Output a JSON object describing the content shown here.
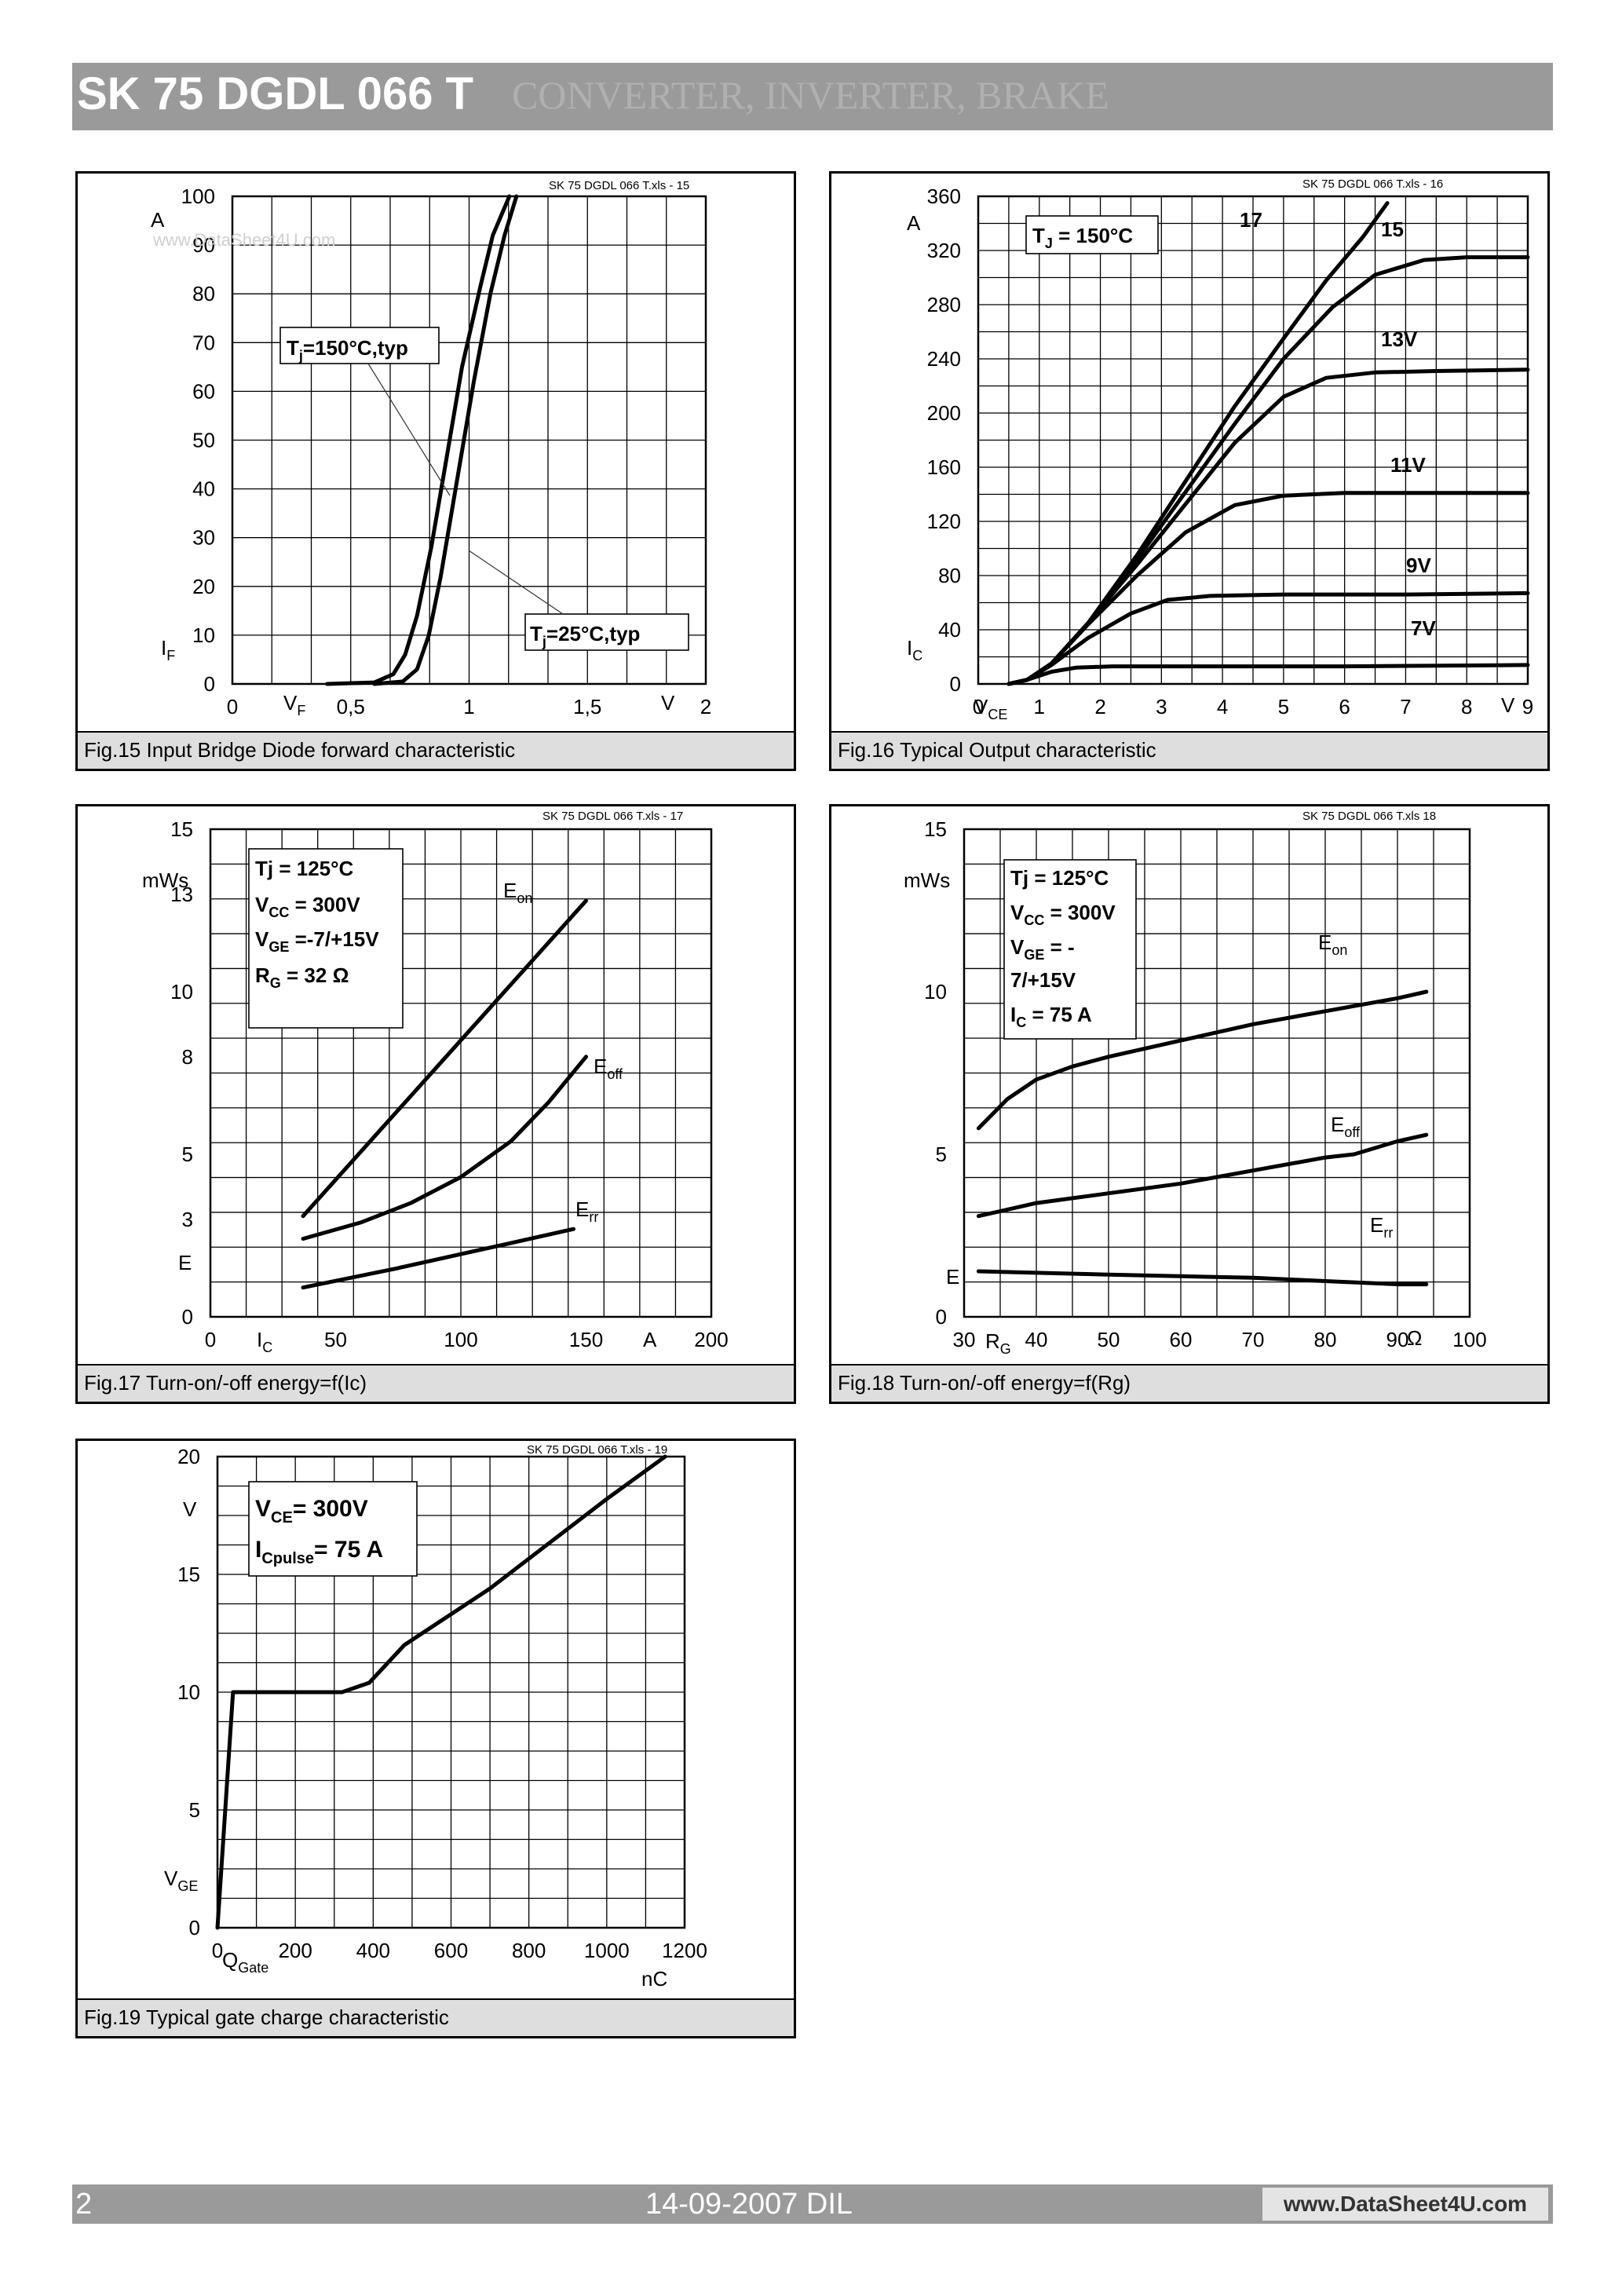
{
  "header": {
    "title": "SK 75 DGDL 066 T",
    "subtitle": "CONVERTER, INVERTER, BRAKE"
  },
  "footer": {
    "page": "2",
    "date": "14-09-2007  DIL",
    "site": "www.DataSheet4U.com"
  },
  "figures": {
    "fig15": {
      "caption": "Fig.15 Input Bridge Diode forward characteristic",
      "file": "SK 75 DGDL 066 T.xls - 15",
      "watermark": "www.DataSheet4U.com",
      "y_unit": "A",
      "y_sym": "I",
      "y_sub": "F",
      "x_sym": "V",
      "x_sub": "F",
      "x_unit": "V",
      "label_hot": "T",
      "label_hot_sub": "j",
      "label_hot_rest": "=150°C,typ",
      "label_cold": "T",
      "label_cold_sub": "j",
      "label_cold_rest": "=25°C,typ"
    },
    "fig16": {
      "caption": "Fig.16 Typical Output characteristic",
      "file": "SK 75 DGDL 066 T.xls - 16",
      "y_unit": "A",
      "y_sym": "I",
      "y_sub": "C",
      "x_sym": "V",
      "x_sub": "CE",
      "x_unit": "V",
      "box_sym": "T",
      "box_sub": "J",
      "box_rest": " = 150°C",
      "curve_labels": [
        "17",
        "15",
        "13V",
        "11V",
        "9V",
        "7V"
      ]
    },
    "fig17": {
      "caption": "Fig.17 Turn-on/-off energy=f(Ic)",
      "file": "SK 75 DGDL 066 T.xls - 17",
      "y_unit": "mWs",
      "y_sym": "E",
      "x_sym": "I",
      "x_sub": "C",
      "x_unit": "A",
      "box": [
        "Tj = 125°C",
        "V",
        "CC",
        " = 300V",
        "V",
        "GE",
        " =-7/+15V",
        "R",
        "G",
        " = 32 Ω"
      ],
      "e_on": [
        "E",
        "on"
      ],
      "e_off": [
        "E",
        "off"
      ],
      "e_rr": [
        "E",
        "rr"
      ]
    },
    "fig18": {
      "caption": "Fig.18 Turn-on/-off energy=f(Rg)",
      "file": "SK 75 DGDL 066 T.xls 18",
      "y_unit": "mWs",
      "y_sym": "E",
      "x_sym": "R",
      "x_sub": "G",
      "x_unit": "Ω",
      "box": [
        "Tj = 125°C",
        "V",
        "CC",
        " = 300V",
        "V",
        "GE",
        " = -",
        "7/+15V",
        "I",
        "C",
        " = 75 A"
      ],
      "e_on": [
        "E",
        "on"
      ],
      "e_off": [
        "E",
        "off"
      ],
      "e_rr": [
        "E",
        "rr"
      ]
    },
    "fig19": {
      "caption": "Fig.19 Typical gate charge characteristic",
      "file": "SK 75 DGDL 066 T.xls - 19",
      "y_unit": "V",
      "y_sym": "V",
      "y_sub": "GE",
      "x_sym": "Q",
      "x_sub": "Gate",
      "x_unit": "nC",
      "box": [
        "V",
        "CE",
        "= 300V",
        "I",
        "Cpulse",
        "= 75 A"
      ]
    }
  },
  "chart_data": [
    {
      "id": "fig15",
      "type": "line",
      "xlim": [
        0,
        2
      ],
      "ylim": [
        0,
        100
      ],
      "xticks": [
        "0",
        "0,5",
        "1",
        "1,5",
        "2"
      ],
      "yticks": [
        "0",
        "10",
        "20",
        "30",
        "40",
        "50",
        "60",
        "70",
        "80",
        "90",
        "100"
      ],
      "series": [
        {
          "points": [
            [
              0.4,
              0
            ],
            [
              0.6,
              0.3
            ],
            [
              0.68,
              2
            ],
            [
              0.73,
              6
            ],
            [
              0.78,
              14
            ],
            [
              0.84,
              28
            ],
            [
              0.9,
              45
            ],
            [
              0.97,
              65
            ],
            [
              1.05,
              82
            ],
            [
              1.1,
              92
            ],
            [
              1.17,
              100
            ]
          ]
        },
        {
          "points": [
            [
              0.6,
              0
            ],
            [
              0.72,
              0.5
            ],
            [
              0.78,
              3
            ],
            [
              0.83,
              10
            ],
            [
              0.88,
              22
            ],
            [
              0.95,
              42
            ],
            [
              1.02,
              62
            ],
            [
              1.09,
              80
            ],
            [
              1.15,
              92
            ],
            [
              1.2,
              100
            ]
          ]
        }
      ]
    },
    {
      "id": "fig16",
      "type": "line",
      "xlim": [
        0,
        9
      ],
      "ylim": [
        0,
        360
      ],
      "xticks": [
        "0",
        "1",
        "2",
        "3",
        "4",
        "5",
        "6",
        "7",
        "8",
        "9"
      ],
      "yticks": [
        "0",
        "40",
        "80",
        "120",
        "160",
        "200",
        "240",
        "280",
        "320",
        "360"
      ],
      "series": [
        {
          "name": "17",
          "points": [
            [
              0.5,
              0
            ],
            [
              0.8,
              3
            ],
            [
              1.2,
              15
            ],
            [
              1.8,
              45
            ],
            [
              2.6,
              95
            ],
            [
              3.4,
              150
            ],
            [
              4.2,
              205
            ],
            [
              5,
              255
            ],
            [
              5.7,
              298
            ],
            [
              6.3,
              330
            ],
            [
              6.7,
              355
            ]
          ]
        },
        {
          "name": "15",
          "points": [
            [
              0.5,
              0
            ],
            [
              0.8,
              3
            ],
            [
              1.2,
              15
            ],
            [
              1.8,
              45
            ],
            [
              2.6,
              92
            ],
            [
              3.4,
              142
            ],
            [
              4.2,
              192
            ],
            [
              5,
              240
            ],
            [
              5.8,
              278
            ],
            [
              6.5,
              302
            ],
            [
              7.3,
              313
            ],
            [
              8,
              315
            ],
            [
              9,
              315
            ]
          ]
        },
        {
          "name": "13V",
          "points": [
            [
              0.5,
              0
            ],
            [
              0.8,
              3
            ],
            [
              1.2,
              15
            ],
            [
              1.8,
              45
            ],
            [
              2.6,
              88
            ],
            [
              3.4,
              133
            ],
            [
              4.2,
              178
            ],
            [
              5,
              212
            ],
            [
              5.7,
              226
            ],
            [
              6.5,
              230
            ],
            [
              7.5,
              231
            ],
            [
              9,
              232
            ]
          ]
        },
        {
          "name": "11V",
          "points": [
            [
              0.5,
              0
            ],
            [
              0.8,
              3
            ],
            [
              1.2,
              15
            ],
            [
              1.8,
              44
            ],
            [
              2.6,
              80
            ],
            [
              3.4,
              112
            ],
            [
              4.2,
              132
            ],
            [
              5,
              139
            ],
            [
              6,
              141
            ],
            [
              7.5,
              141
            ],
            [
              9,
              141
            ]
          ]
        },
        {
          "name": "9V",
          "points": [
            [
              0.5,
              0
            ],
            [
              0.8,
              3
            ],
            [
              1.2,
              14
            ],
            [
              1.8,
              34
            ],
            [
              2.5,
              52
            ],
            [
              3.1,
              62
            ],
            [
              3.8,
              65
            ],
            [
              5,
              66
            ],
            [
              7,
              66
            ],
            [
              9,
              67
            ]
          ]
        },
        {
          "name": "7V",
          "points": [
            [
              0.5,
              0
            ],
            [
              0.8,
              3
            ],
            [
              1.2,
              9
            ],
            [
              1.6,
              12
            ],
            [
              2.2,
              13
            ],
            [
              4,
              13
            ],
            [
              6,
              13
            ],
            [
              9,
              14
            ]
          ]
        }
      ]
    },
    {
      "id": "fig17",
      "type": "line",
      "xlim": [
        0,
        200
      ],
      "ylim": [
        0,
        15
      ],
      "xticks": [
        "0",
        "50",
        "100",
        "150",
        "200"
      ],
      "yticks": [
        "0",
        "3",
        "5",
        "8",
        "10",
        "13",
        "15"
      ],
      "series": [
        {
          "name": "Eon",
          "points": [
            [
              37,
              3.1
            ],
            [
              150,
              12.8
            ]
          ]
        },
        {
          "name": "Eoff",
          "points": [
            [
              37,
              2.4
            ],
            [
              60,
              2.9
            ],
            [
              80,
              3.5
            ],
            [
              100,
              4.3
            ],
            [
              120,
              5.4
            ],
            [
              135,
              6.6
            ],
            [
              150,
              8.0
            ]
          ]
        },
        {
          "name": "Err",
          "points": [
            [
              37,
              0.9
            ],
            [
              75,
              1.5
            ],
            [
              110,
              2.1
            ],
            [
              145,
              2.7
            ]
          ]
        }
      ]
    },
    {
      "id": "fig18",
      "type": "line",
      "xlim": [
        30,
        100
      ],
      "ylim": [
        0,
        15
      ],
      "xticks": [
        "30",
        "40",
        "50",
        "60",
        "70",
        "80",
        "90",
        "100"
      ],
      "yticks": [
        "0",
        "5",
        "10",
        "15"
      ],
      "series": [
        {
          "name": "Eon",
          "points": [
            [
              32,
              5.8
            ],
            [
              36,
              6.7
            ],
            [
              40,
              7.3
            ],
            [
              45,
              7.7
            ],
            [
              50,
              8.0
            ],
            [
              60,
              8.5
            ],
            [
              70,
              9.0
            ],
            [
              80,
              9.4
            ],
            [
              90,
              9.8
            ],
            [
              94,
              10.0
            ]
          ]
        },
        {
          "name": "Eoff",
          "points": [
            [
              32,
              3.1
            ],
            [
              40,
              3.5
            ],
            [
              50,
              3.8
            ],
            [
              60,
              4.1
            ],
            [
              70,
              4.5
            ],
            [
              80,
              4.9
            ],
            [
              84,
              5.0
            ],
            [
              90,
              5.4
            ],
            [
              94,
              5.6
            ]
          ]
        },
        {
          "name": "Err",
          "points": [
            [
              32,
              1.4
            ],
            [
              50,
              1.3
            ],
            [
              70,
              1.2
            ],
            [
              80,
              1.1
            ],
            [
              90,
              1.0
            ],
            [
              94,
              1.0
            ]
          ]
        }
      ]
    },
    {
      "id": "fig19",
      "type": "line",
      "xlim": [
        0,
        1200
      ],
      "ylim": [
        0,
        20
      ],
      "xticks": [
        "0",
        "200",
        "400",
        "600",
        "800",
        "1000",
        "1200"
      ],
      "yticks": [
        "0",
        "5",
        "10",
        "15",
        "20"
      ],
      "series": [
        {
          "points": [
            [
              0,
              0
            ],
            [
              40,
              10
            ],
            [
              320,
              10
            ],
            [
              390,
              10.4
            ],
            [
              480,
              12
            ],
            [
              700,
              14.4
            ],
            [
              1000,
              18.2
            ],
            [
              1150,
              20
            ]
          ]
        }
      ]
    }
  ]
}
